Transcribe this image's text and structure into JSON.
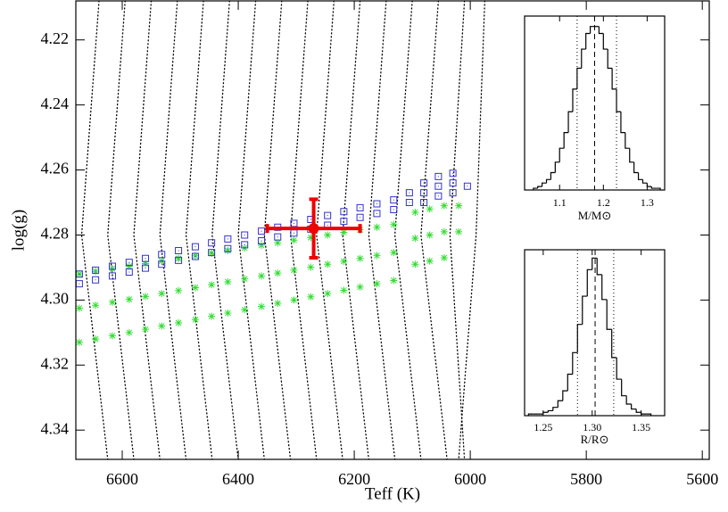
{
  "chart_data": [
    {
      "type": "scatter",
      "x_label": "Teff (K)",
      "y_label": "log(g)",
      "y_inverted": true,
      "xlim": [
        6680,
        5588
      ],
      "ylim": [
        4.208,
        4.349
      ],
      "xticks": [
        6600,
        6400,
        6200,
        6000,
        5800,
        5600
      ],
      "yticks": [
        4.22,
        4.24,
        4.26,
        4.28,
        {
          "value": 4.3,
          "label": "4.30"
        },
        4.32,
        4.34
      ],
      "tracks": {
        "color": "#000000",
        "lines": [
          {
            "x": [
              6640,
              6670,
              6625
            ],
            "y": [
              4.208,
              4.28,
              4.349
            ]
          },
          {
            "x": [
              6595,
              6625,
              6580
            ],
            "y": [
              4.208,
              4.28,
              4.349
            ]
          },
          {
            "x": [
              6550,
              6580,
              6535
            ],
            "y": [
              4.208,
              4.28,
              4.349
            ]
          },
          {
            "x": [
              6505,
              6535,
              6490
            ],
            "y": [
              4.208,
              4.28,
              4.349
            ]
          },
          {
            "x": [
              6460,
              6490,
              6445
            ],
            "y": [
              4.208,
              4.28,
              4.349
            ]
          },
          {
            "x": [
              6415,
              6445,
              6400
            ],
            "y": [
              4.208,
              4.28,
              4.349
            ]
          },
          {
            "x": [
              6370,
              6400,
              6355
            ],
            "y": [
              4.208,
              4.28,
              4.349
            ]
          },
          {
            "x": [
              6325,
              6355,
              6310
            ],
            "y": [
              4.208,
              4.28,
              4.349
            ]
          },
          {
            "x": [
              6280,
              6310,
              6265
            ],
            "y": [
              4.208,
              4.28,
              4.349
            ]
          },
          {
            "x": [
              6235,
              6265,
              6220
            ],
            "y": [
              4.208,
              4.28,
              4.349
            ]
          },
          {
            "x": [
              6190,
              6220,
              6175
            ],
            "y": [
              4.208,
              4.28,
              4.349
            ]
          },
          {
            "x": [
              6145,
              6175,
              6130
            ],
            "y": [
              4.208,
              4.28,
              4.349
            ]
          },
          {
            "x": [
              6100,
              6130,
              6085
            ],
            "y": [
              4.208,
              4.28,
              4.349
            ]
          },
          {
            "x": [
              6055,
              6085,
              6040
            ],
            "y": [
              4.208,
              4.28,
              4.349
            ]
          },
          {
            "x": [
              6010,
              6035,
              6010
            ],
            "y": [
              4.208,
              4.28,
              4.349
            ]
          },
          {
            "x": [
              5975,
              5990,
              6020
            ],
            "y": [
              4.208,
              4.28,
              4.349
            ]
          }
        ]
      },
      "series": [
        {
          "marker": "asterisk",
          "color": "#33dd33",
          "x": [
            6674,
            6646,
            6617,
            6588,
            6560,
            6532,
            6503,
            6474,
            6446,
            6418,
            6389,
            6360,
            6332,
            6304,
            6275,
            6246,
            6218,
            6190,
            6161,
            6132
          ],
          "y": [
            4.292,
            4.2912,
            4.2904,
            4.2896,
            4.2888,
            4.288,
            4.2872,
            4.2864,
            4.2856,
            4.2848,
            4.284,
            4.2832,
            4.2824,
            4.2816,
            4.2808,
            4.28,
            4.2792,
            4.2784,
            4.2776,
            4.2768
          ]
        },
        {
          "marker": "asterisk",
          "color": "#33dd33",
          "x": [
            6674,
            6646,
            6617,
            6588,
            6560,
            6532,
            6503,
            6474,
            6446,
            6418,
            6389,
            6360,
            6332,
            6304,
            6275,
            6246,
            6218,
            6190,
            6161,
            6132
          ],
          "y": [
            4.3025,
            4.3016,
            4.3007,
            4.2998,
            4.2989,
            4.298,
            4.2971,
            4.2962,
            4.2953,
            4.2944,
            4.2935,
            4.2926,
            4.2917,
            4.2908,
            4.2899,
            4.289,
            4.2881,
            4.2872,
            4.2863,
            4.2854
          ]
        },
        {
          "marker": "asterisk",
          "color": "#33dd33",
          "x": [
            6674,
            6646,
            6617,
            6588,
            6560,
            6532,
            6503,
            6474,
            6446,
            6418,
            6389,
            6360,
            6332,
            6304,
            6275,
            6246,
            6218,
            6190,
            6161,
            6132
          ],
          "y": [
            4.313,
            4.312,
            4.311,
            4.31,
            4.309,
            4.308,
            4.307,
            4.306,
            4.305,
            4.304,
            4.303,
            4.302,
            4.301,
            4.3,
            4.299,
            4.298,
            4.297,
            4.296,
            4.295,
            4.294
          ]
        },
        {
          "marker": "asterisk",
          "color": "#33dd33",
          "x": [
            6095,
            6095,
            6095,
            6070,
            6070,
            6070,
            6045,
            6045,
            6045,
            6020,
            6020
          ],
          "y": [
            4.273,
            4.281,
            4.289,
            4.272,
            4.28,
            4.288,
            4.271,
            4.279,
            4.287,
            4.271,
            4.279
          ]
        },
        {
          "marker": "square",
          "color": "#3333cc",
          "x": [
            6674,
            6646,
            6617,
            6588,
            6560,
            6532,
            6503,
            6474,
            6446,
            6418,
            6389,
            6360,
            6332,
            6304,
            6275,
            6246,
            6218,
            6190,
            6161,
            6132
          ],
          "y": [
            4.295,
            4.2938,
            4.2926,
            4.2914,
            4.2902,
            4.289,
            4.2878,
            4.2866,
            4.2854,
            4.2842,
            4.283,
            4.2818,
            4.2806,
            4.2794,
            4.2782,
            4.277,
            4.2758,
            4.2746,
            4.2734,
            4.2722
          ]
        },
        {
          "marker": "square",
          "color": "#3333cc",
          "x": [
            6674,
            6646,
            6617,
            6588,
            6560,
            6532,
            6503,
            6474,
            6446,
            6418,
            6389,
            6360,
            6332,
            6304,
            6275,
            6246,
            6218,
            6190,
            6161,
            6132
          ],
          "y": [
            4.292,
            4.2908,
            4.2896,
            4.2884,
            4.2872,
            4.286,
            4.2848,
            4.2836,
            4.2824,
            4.2812,
            4.28,
            4.2788,
            4.2776,
            4.2764,
            4.2752,
            4.274,
            4.2728,
            4.2716,
            4.2704,
            4.2692
          ]
        },
        {
          "marker": "square",
          "color": "#3333cc",
          "x": [
            6105,
            6105,
            6080,
            6080,
            6080,
            6055,
            6055,
            6055,
            6030,
            6030,
            6030,
            6005
          ],
          "y": [
            4.267,
            4.27,
            4.264,
            4.267,
            4.27,
            4.262,
            4.265,
            4.268,
            4.261,
            4.264,
            4.267,
            4.265
          ]
        }
      ],
      "point": {
        "x": 6270,
        "y": 4.278,
        "xerr": 80,
        "yerr": 0.009,
        "color": "#ee0000"
      }
    },
    {
      "type": "histogram",
      "x_label": "M/M⊙",
      "xlim": [
        1.02,
        1.34
      ],
      "ylim": [
        0,
        100
      ],
      "xticks": [
        1.1,
        1.2,
        1.3
      ],
      "color": "#000000",
      "bins": [
        1.04,
        1.05,
        1.06,
        1.07,
        1.08,
        1.09,
        1.1,
        1.11,
        1.12,
        1.13,
        1.14,
        1.15,
        1.16,
        1.17,
        1.18,
        1.19,
        1.2,
        1.21,
        1.22,
        1.23,
        1.24,
        1.25,
        1.26,
        1.27,
        1.28,
        1.29,
        1.3,
        1.31,
        1.32,
        1.33
      ],
      "counts": [
        1,
        2,
        4,
        6,
        10,
        16,
        24,
        33,
        45,
        58,
        70,
        81,
        90,
        94,
        94,
        90,
        81,
        70,
        58,
        45,
        33,
        24,
        16,
        10,
        6,
        4,
        2,
        1,
        1
      ],
      "vlines": [
        {
          "value": 1.14,
          "style": "dotted"
        },
        {
          "value": 1.18,
          "style": "dashed"
        },
        {
          "value": 1.23,
          "style": "dotted"
        }
      ]
    },
    {
      "type": "histogram",
      "x_label": "R/R⊙",
      "xlim": [
        1.231,
        1.374
      ],
      "ylim": [
        0,
        100
      ],
      "xticks": [
        1.25,
        {
          "value": 1.3,
          "label": "1.30"
        },
        1.35
      ],
      "color": "#000000",
      "bins": [
        1.235,
        1.24,
        1.245,
        1.25,
        1.255,
        1.26,
        1.265,
        1.27,
        1.275,
        1.28,
        1.285,
        1.29,
        1.295,
        1.3,
        1.305,
        1.31,
        1.315,
        1.32,
        1.325,
        1.33,
        1.335,
        1.34,
        1.345,
        1.35,
        1.355,
        1.36
      ],
      "counts": [
        1,
        1,
        1,
        2,
        3,
        5,
        9,
        15,
        25,
        38,
        55,
        72,
        88,
        95,
        85,
        70,
        52,
        35,
        22,
        12,
        7,
        4,
        2,
        1,
        1
      ],
      "vlines": [
        {
          "value": 1.285,
          "style": "dotted"
        },
        {
          "value": 1.303,
          "style": "dashed"
        },
        {
          "value": 1.322,
          "style": "dotted"
        }
      ]
    }
  ]
}
